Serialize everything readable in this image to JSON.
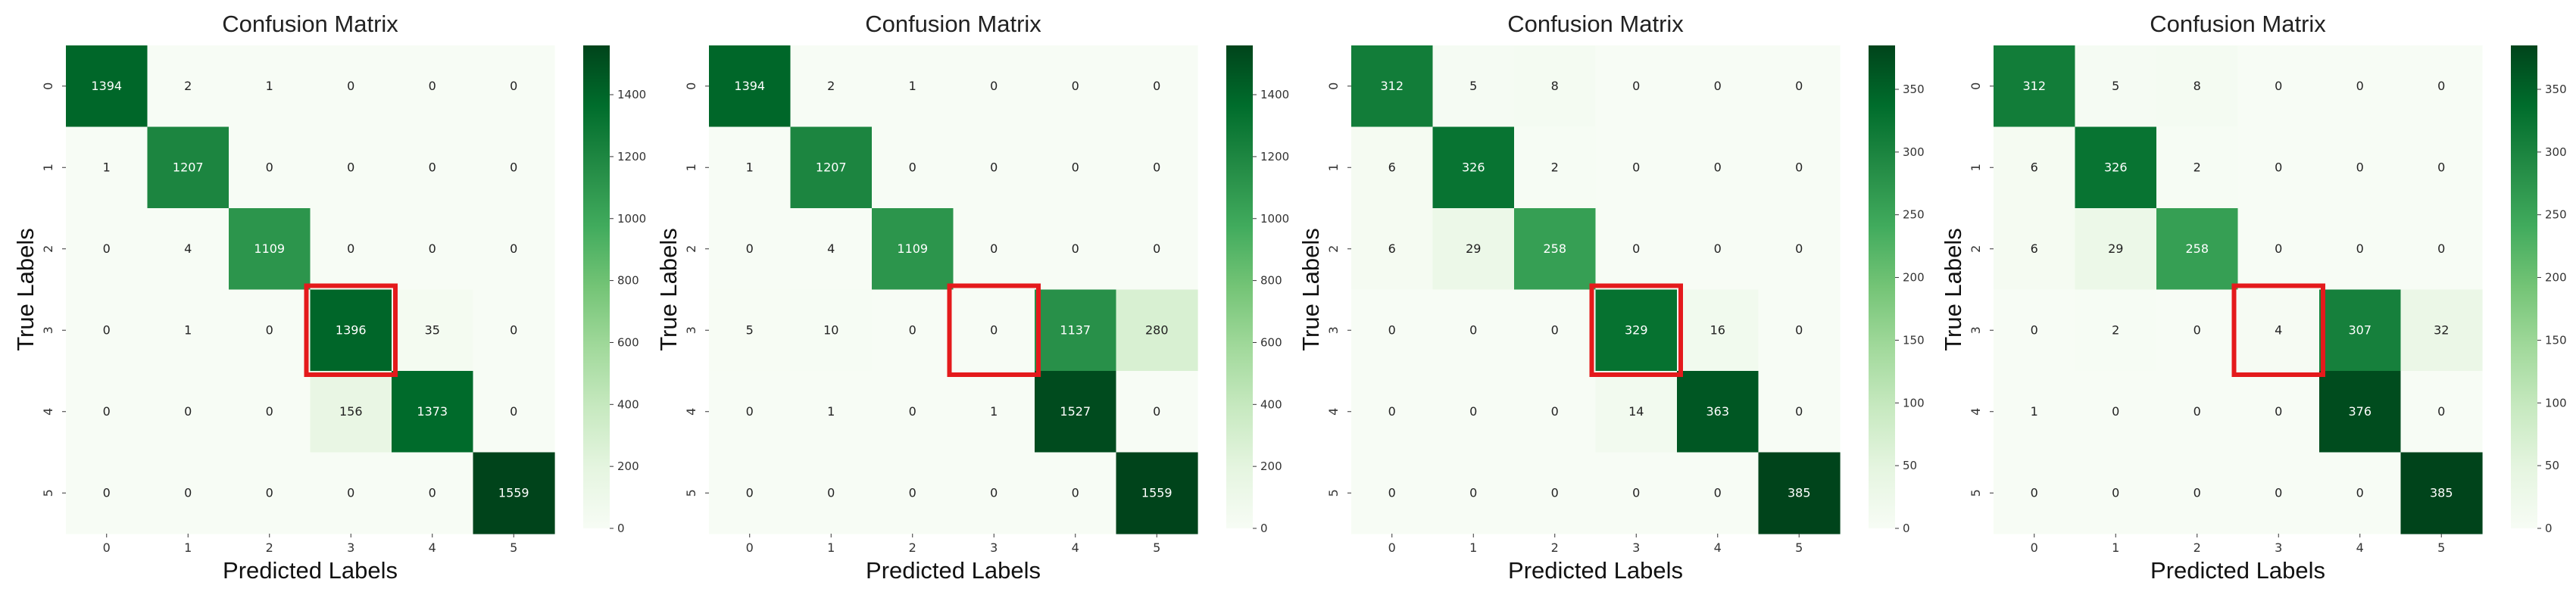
{
  "chart_data": [
    {
      "type": "heatmap",
      "title": "Confusion Matrix",
      "xlabel": "Predicted Labels",
      "ylabel": "True Labels",
      "x_categories": [
        "0",
        "1",
        "2",
        "3",
        "4",
        "5"
      ],
      "y_categories": [
        "0",
        "1",
        "2",
        "3",
        "4",
        "5"
      ],
      "values": [
        [
          1394,
          2,
          1,
          0,
          0,
          0
        ],
        [
          1,
          1207,
          0,
          0,
          0,
          0
        ],
        [
          0,
          4,
          1109,
          0,
          0,
          0
        ],
        [
          0,
          1,
          0,
          1396,
          35,
          0
        ],
        [
          0,
          0,
          0,
          156,
          1373,
          0
        ],
        [
          0,
          0,
          0,
          0,
          0,
          1559
        ]
      ],
      "colormap": "Greens",
      "vmax": 1559,
      "colorbar_ticks": [
        0,
        200,
        400,
        600,
        800,
        1000,
        1200,
        1400
      ],
      "highlight": {
        "row": 3,
        "col": 3,
        "color": "#e41a1c"
      }
    },
    {
      "type": "heatmap",
      "title": "Confusion Matrix",
      "xlabel": "Predicted Labels",
      "ylabel": "True Labels",
      "x_categories": [
        "0",
        "1",
        "2",
        "3",
        "4",
        "5"
      ],
      "y_categories": [
        "0",
        "1",
        "2",
        "3",
        "4",
        "5"
      ],
      "values": [
        [
          1394,
          2,
          1,
          0,
          0,
          0
        ],
        [
          1,
          1207,
          0,
          0,
          0,
          0
        ],
        [
          0,
          4,
          1109,
          0,
          0,
          0
        ],
        [
          5,
          10,
          0,
          0,
          1137,
          280
        ],
        [
          0,
          1,
          0,
          1,
          1527,
          0
        ],
        [
          0,
          0,
          0,
          0,
          0,
          1559
        ]
      ],
      "colormap": "Greens",
      "vmax": 1559,
      "colorbar_ticks": [
        0,
        200,
        400,
        600,
        800,
        1000,
        1200,
        1400
      ],
      "highlight": {
        "row": 3,
        "col": 3,
        "color": "#e41a1c"
      }
    },
    {
      "type": "heatmap",
      "title": "Confusion Matrix",
      "xlabel": "Predicted Labels",
      "ylabel": "True Labels",
      "x_categories": [
        "0",
        "1",
        "2",
        "3",
        "4",
        "5"
      ],
      "y_categories": [
        "0",
        "1",
        "2",
        "3",
        "4",
        "5"
      ],
      "values": [
        [
          312,
          5,
          8,
          0,
          0,
          0
        ],
        [
          6,
          326,
          2,
          0,
          0,
          0
        ],
        [
          6,
          29,
          258,
          0,
          0,
          0
        ],
        [
          0,
          0,
          0,
          329,
          16,
          0
        ],
        [
          0,
          0,
          0,
          14,
          363,
          0
        ],
        [
          0,
          0,
          0,
          0,
          0,
          385
        ]
      ],
      "colormap": "Greens",
      "vmax": 385,
      "colorbar_ticks": [
        0,
        50,
        100,
        150,
        200,
        250,
        300,
        350
      ],
      "highlight": {
        "row": 3,
        "col": 3,
        "color": "#e41a1c"
      }
    },
    {
      "type": "heatmap",
      "title": "Confusion Matrix",
      "xlabel": "Predicted Labels",
      "ylabel": "True Labels",
      "x_categories": [
        "0",
        "1",
        "2",
        "3",
        "4",
        "5"
      ],
      "y_categories": [
        "0",
        "1",
        "2",
        "3",
        "4",
        "5"
      ],
      "values": [
        [
          312,
          5,
          8,
          0,
          0,
          0
        ],
        [
          6,
          326,
          2,
          0,
          0,
          0
        ],
        [
          6,
          29,
          258,
          0,
          0,
          0
        ],
        [
          0,
          2,
          0,
          4,
          307,
          32
        ],
        [
          1,
          0,
          0,
          0,
          376,
          0
        ],
        [
          0,
          0,
          0,
          0,
          0,
          385
        ]
      ],
      "colormap": "Greens",
      "vmax": 385,
      "colorbar_ticks": [
        0,
        50,
        100,
        150,
        200,
        250,
        300,
        350
      ],
      "highlight": {
        "row": 3,
        "col": 3,
        "color": "#e41a1c"
      }
    }
  ]
}
